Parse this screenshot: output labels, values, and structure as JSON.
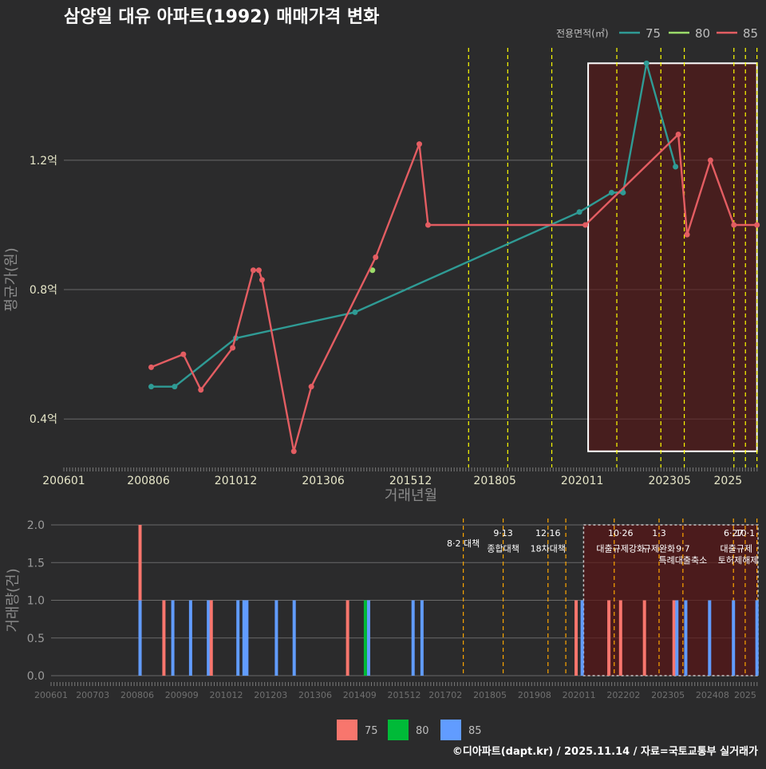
{
  "title": "삼양일 대유 아파트(1992) 매매가격 변화",
  "footer": "©디아파트(dapt.kr) / 2025.11.14 / 자료=국토교통부 실거래가",
  "colors": {
    "s75": "#2f9b95",
    "s80": "#9bdc6a",
    "s85": "#e35d62",
    "bar75": "#f8766d",
    "bar80": "#00ba38",
    "bar85": "#619cff",
    "policy_top": "#ffff00",
    "policy_bottom": "#ffa500",
    "highlight": "#5a1616"
  },
  "chart_data": [
    {
      "type": "line",
      "title": "삼양일 대유 아파트(1992) 매매가격 변화",
      "xlabel": "거래년월",
      "ylabel": "평균가(원)",
      "ylim": [
        0.25,
        1.56
      ],
      "yticks": [
        {
          "v": 0.4,
          "label": "0.4억"
        },
        {
          "v": 0.8,
          "label": "0.8억"
        },
        {
          "v": 1.2,
          "label": "1.2억"
        }
      ],
      "xlim": [
        2006.0,
        2025.86
      ],
      "xticks": [
        {
          "v": 2006.0,
          "label": "200601"
        },
        {
          "v": 2008.42,
          "label": "200806"
        },
        {
          "v": 2010.92,
          "label": "201012"
        },
        {
          "v": 2013.42,
          "label": "201306"
        },
        {
          "v": 2015.92,
          "label": "201512"
        },
        {
          "v": 2018.33,
          "label": "201805"
        },
        {
          "v": 2020.83,
          "label": "202011"
        },
        {
          "v": 2023.33,
          "label": "202305"
        },
        {
          "v": 2025.0,
          "label": "2025"
        }
      ],
      "legend_title": "전용면적(㎡)",
      "legend": [
        "75",
        "80",
        "85"
      ],
      "series": [
        {
          "name": "75",
          "points": [
            [
              2008.5,
              0.5
            ],
            [
              2009.17,
              0.5
            ],
            [
              2010.92,
              0.65
            ],
            [
              2014.33,
              0.73
            ],
            [
              2020.75,
              1.04
            ],
            [
              2021.67,
              1.1
            ],
            [
              2022.0,
              1.1
            ],
            [
              2022.67,
              1.5
            ],
            [
              2023.5,
              1.18
            ]
          ]
        },
        {
          "name": "80",
          "points": [
            [
              2014.83,
              0.86
            ]
          ]
        },
        {
          "name": "85",
          "points": [
            [
              2008.5,
              0.56
            ],
            [
              2009.42,
              0.6
            ],
            [
              2009.92,
              0.49
            ],
            [
              2010.83,
              0.62
            ],
            [
              2011.42,
              0.86
            ],
            [
              2011.58,
              0.86
            ],
            [
              2011.67,
              0.83
            ],
            [
              2012.58,
              0.3
            ],
            [
              2013.08,
              0.5
            ],
            [
              2014.92,
              0.9
            ],
            [
              2016.17,
              1.25
            ],
            [
              2016.42,
              1.0
            ],
            [
              2020.92,
              1.0
            ],
            [
              2023.58,
              1.28
            ],
            [
              2023.83,
              0.97
            ],
            [
              2024.5,
              1.2
            ],
            [
              2025.17,
              1.0
            ],
            [
              2025.83,
              1.0
            ]
          ]
        }
      ],
      "policy_lines": [
        2017.58,
        2018.7,
        2019.96,
        2021.82,
        2023.08,
        2023.75,
        2025.17,
        2025.5,
        2025.83
      ],
      "highlight_range": [
        2021.0,
        2025.83,
        0.3,
        1.5
      ]
    },
    {
      "type": "bar",
      "ylabel": "거래량(건)",
      "ylim": [
        0,
        2
      ],
      "yticks": [
        {
          "v": 0,
          "label": "0.0"
        },
        {
          "v": 0.5,
          "label": "0.5"
        },
        {
          "v": 1,
          "label": "1.0"
        },
        {
          "v": 1.5,
          "label": "1.5"
        },
        {
          "v": 2,
          "label": "2.0"
        }
      ],
      "xlim": [
        2006.0,
        2025.86
      ],
      "xticks": [
        {
          "v": 2006.0,
          "label": "200601"
        },
        {
          "v": 2007.17,
          "label": "200703"
        },
        {
          "v": 2008.42,
          "label": "200806"
        },
        {
          "v": 2009.67,
          "label": "200909"
        },
        {
          "v": 2010.92,
          "label": "201012"
        },
        {
          "v": 2012.17,
          "label": "201203"
        },
        {
          "v": 2013.42,
          "label": "201306"
        },
        {
          "v": 2014.67,
          "label": "201409"
        },
        {
          "v": 2015.92,
          "label": "201512"
        },
        {
          "v": 2017.08,
          "label": "201702"
        },
        {
          "v": 2018.33,
          "label": "201805"
        },
        {
          "v": 2019.58,
          "label": "201908"
        },
        {
          "v": 2020.83,
          "label": "202011"
        },
        {
          "v": 2022.08,
          "label": "202202"
        },
        {
          "v": 2023.33,
          "label": "202305"
        },
        {
          "v": 2024.58,
          "label": "202408"
        },
        {
          "v": 2025.5,
          "label": "2025"
        }
      ],
      "legend": [
        "75",
        "80",
        "85"
      ],
      "bars": [
        {
          "x": 2008.5,
          "s": "85",
          "v": 1
        },
        {
          "x": 2008.5,
          "s": "75",
          "v": 2
        },
        {
          "x": 2009.17,
          "s": "75",
          "v": 1
        },
        {
          "x": 2009.42,
          "s": "85",
          "v": 1
        },
        {
          "x": 2009.92,
          "s": "85",
          "v": 1
        },
        {
          "x": 2010.42,
          "s": "85",
          "v": 1
        },
        {
          "x": 2010.5,
          "s": "75",
          "v": 1
        },
        {
          "x": 2011.25,
          "s": "85",
          "v": 1
        },
        {
          "x": 2011.42,
          "s": "85",
          "v": 1
        },
        {
          "x": 2011.5,
          "s": "85",
          "v": 1
        },
        {
          "x": 2012.33,
          "s": "85",
          "v": 1
        },
        {
          "x": 2012.83,
          "s": "85",
          "v": 1
        },
        {
          "x": 2014.33,
          "s": "75",
          "v": 1
        },
        {
          "x": 2014.83,
          "s": "80",
          "v": 1
        },
        {
          "x": 2014.92,
          "s": "85",
          "v": 1
        },
        {
          "x": 2016.17,
          "s": "85",
          "v": 1
        },
        {
          "x": 2016.42,
          "s": "85",
          "v": 1
        },
        {
          "x": 2020.75,
          "s": "75",
          "v": 1
        },
        {
          "x": 2020.92,
          "s": "85",
          "v": 1
        },
        {
          "x": 2021.67,
          "s": "75",
          "v": 1
        },
        {
          "x": 2022.0,
          "s": "75",
          "v": 1
        },
        {
          "x": 2022.67,
          "s": "75",
          "v": 1
        },
        {
          "x": 2023.5,
          "s": "75",
          "v": 1
        },
        {
          "x": 2023.58,
          "s": "85",
          "v": 1
        },
        {
          "x": 2023.83,
          "s": "85",
          "v": 1
        },
        {
          "x": 2024.5,
          "s": "85",
          "v": 1
        },
        {
          "x": 2025.17,
          "s": "85",
          "v": 1
        },
        {
          "x": 2025.83,
          "s": "85",
          "v": 1
        }
      ],
      "policy_lines": [
        2017.58,
        2018.7,
        2019.96,
        2020.46,
        2021.82,
        2023.08,
        2023.75,
        2025.17,
        2025.5,
        2025.83
      ],
      "highlight_range": [
        2020.96,
        2025.86,
        0,
        2
      ],
      "annotations": [
        {
          "x": 2017.58,
          "row": 1,
          "text": "8·2 대책"
        },
        {
          "x": 2018.7,
          "row": 0,
          "text": "9·13"
        },
        {
          "x": 2018.7,
          "row": 1.5,
          "text": "종합대책"
        },
        {
          "x": 2019.96,
          "row": 0,
          "text": "12·16"
        },
        {
          "x": 2019.96,
          "row": 1.5,
          "text": "18차대책"
        },
        {
          "x": 2022.0,
          "row": 0,
          "text": "10·26"
        },
        {
          "x": 2022.0,
          "row": 1.5,
          "text": "대출규제강화"
        },
        {
          "x": 2023.08,
          "row": 0,
          "text": "1·3"
        },
        {
          "x": 2023.08,
          "row": 1.5,
          "text": "규제완화"
        },
        {
          "x": 2023.75,
          "row": 1.5,
          "text": "9·7"
        },
        {
          "x": 2023.75,
          "row": 2.6,
          "text": "특례대출축소"
        },
        {
          "x": 2025.17,
          "row": 0,
          "text": "6·27"
        },
        {
          "x": 2025.5,
          "row": 0,
          "text": "10·1"
        },
        {
          "x": 2025.25,
          "row": 1.5,
          "text": "대출규제"
        },
        {
          "x": 2025.3,
          "row": 2.6,
          "text": "토허제해제"
        }
      ]
    }
  ]
}
